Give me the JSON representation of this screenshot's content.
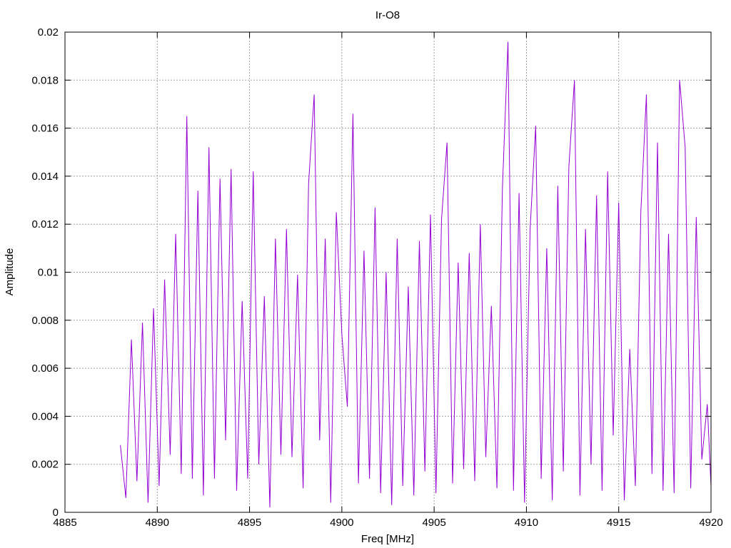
{
  "chart_data": {
    "type": "line",
    "title": "Ir-O8",
    "xlabel": "Freq [MHz]",
    "ylabel": "Amplitude",
    "xlim": [
      4885,
      4920
    ],
    "ylim": [
      0,
      0.02
    ],
    "xticks": [
      "4885",
      "4890",
      "4895",
      "4900",
      "4905",
      "4910",
      "4915",
      "4920"
    ],
    "yticks": [
      "0",
      "0.002",
      "0.004",
      "0.006",
      "0.008",
      "0.01",
      "0.012",
      "0.014",
      "0.016",
      "0.018",
      "0.02"
    ],
    "grid": true,
    "legend": "none",
    "series": [
      {
        "color": "#9400d3",
        "x": [
          4888.0,
          4888.3,
          4888.6,
          4888.9,
          4889.2,
          4889.5,
          4889.8,
          4890.1,
          4890.4,
          4890.7,
          4891.0,
          4891.3,
          4891.6,
          4891.9,
          4892.2,
          4892.5,
          4892.8,
          4893.1,
          4893.4,
          4893.7,
          4894.0,
          4894.3,
          4894.6,
          4894.9,
          4895.2,
          4895.5,
          4895.8,
          4896.1,
          4896.4,
          4896.7,
          4897.0,
          4897.3,
          4897.6,
          4897.9,
          4898.2,
          4898.5,
          4898.8,
          4899.1,
          4899.4,
          4899.7,
          4900.0,
          4900.3,
          4900.6,
          4900.9,
          4901.2,
          4901.5,
          4901.8,
          4902.1,
          4902.4,
          4902.7,
          4903.0,
          4903.3,
          4903.6,
          4903.9,
          4904.2,
          4904.5,
          4904.8,
          4905.1,
          4905.4,
          4905.7,
          4906.0,
          4906.3,
          4906.6,
          4906.9,
          4907.2,
          4907.5,
          4907.8,
          4908.1,
          4908.4,
          4908.7,
          4909.0,
          4909.3,
          4909.6,
          4909.9,
          4910.2,
          4910.5,
          4910.8,
          4911.1,
          4911.4,
          4911.7,
          4912.0,
          4912.3,
          4912.6,
          4912.9,
          4913.2,
          4913.5,
          4913.8,
          4914.1,
          4914.4,
          4914.7,
          4915.0,
          4915.3,
          4915.6,
          4915.9,
          4916.2,
          4916.5,
          4916.8,
          4917.1,
          4917.4,
          4917.7,
          4918.0,
          4918.3,
          4918.6,
          4918.9,
          4919.2,
          4919.5,
          4919.8,
          4920.0
        ],
        "y": [
          0.0028,
          0.0006,
          0.0072,
          0.0013,
          0.0079,
          0.0004,
          0.0085,
          0.0011,
          0.0097,
          0.0024,
          0.0116,
          0.0016,
          0.0165,
          0.0014,
          0.0134,
          0.0007,
          0.0152,
          0.0014,
          0.0139,
          0.003,
          0.0143,
          0.0009,
          0.0088,
          0.0014,
          0.0142,
          0.002,
          0.009,
          0.0002,
          0.0114,
          0.0024,
          0.0118,
          0.0023,
          0.0099,
          0.001,
          0.0137,
          0.0174,
          0.003,
          0.0114,
          0.0004,
          0.0125,
          0.0074,
          0.0044,
          0.0166,
          0.0012,
          0.0109,
          0.0014,
          0.0127,
          0.0008,
          0.01,
          0.0003,
          0.0114,
          0.0011,
          0.0094,
          0.0007,
          0.0113,
          0.0017,
          0.0124,
          0.0008,
          0.0122,
          0.0154,
          0.0012,
          0.0104,
          0.0018,
          0.0108,
          0.0013,
          0.012,
          0.0023,
          0.0086,
          0.001,
          0.0135,
          0.0196,
          0.0009,
          0.0133,
          0.0004,
          0.0118,
          0.0161,
          0.0014,
          0.011,
          0.0005,
          0.0136,
          0.0017,
          0.0144,
          0.018,
          0.0007,
          0.0118,
          0.002,
          0.0132,
          0.0009,
          0.0142,
          0.0032,
          0.0129,
          0.0005,
          0.0068,
          0.0011,
          0.0125,
          0.0174,
          0.0016,
          0.0154,
          0.0009,
          0.0116,
          0.0008,
          0.018,
          0.0152,
          0.001,
          0.0123,
          0.0022,
          0.0045,
          0.0011
        ]
      }
    ]
  }
}
